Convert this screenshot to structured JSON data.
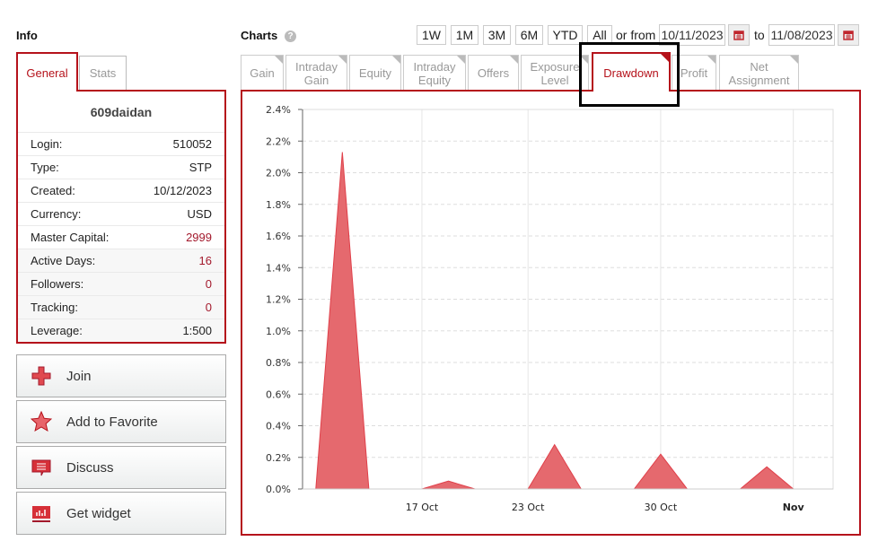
{
  "info": {
    "title": "Info",
    "tabs": [
      {
        "label": "General",
        "active": true
      },
      {
        "label": "Stats",
        "active": false
      }
    ],
    "account_name": "609daidan",
    "rows": [
      {
        "label": "Login:",
        "value": "510052"
      },
      {
        "label": "Type:",
        "value": "STP"
      },
      {
        "label": "Created:",
        "value": "10/12/2023"
      },
      {
        "label": "Currency:",
        "value": "USD"
      },
      {
        "label": "Master Capital:",
        "value": "2999"
      },
      {
        "label": "Active Days:",
        "value": "16"
      },
      {
        "label": "Followers:",
        "value": "0"
      },
      {
        "label": "Tracking:",
        "value": "0"
      },
      {
        "label": "Leverage:",
        "value": "1:500"
      }
    ],
    "actions": [
      {
        "label": "Join",
        "icon": "plus-icon"
      },
      {
        "label": "Add to Favorite",
        "icon": "star-icon"
      },
      {
        "label": "Discuss",
        "icon": "comment-icon"
      },
      {
        "label": "Get widget",
        "icon": "widget-chart-icon"
      }
    ]
  },
  "charts": {
    "title": "Charts",
    "help_icon": "question-icon",
    "ranges": [
      "1W",
      "1M",
      "3M",
      "6M",
      "YTD",
      "All"
    ],
    "or_from": "or from",
    "from_date": "10/11/2023",
    "to": "to",
    "to_date": "11/08/2023",
    "tabs": [
      {
        "label": "Gain"
      },
      {
        "label": "Intraday Gain"
      },
      {
        "label": "Equity"
      },
      {
        "label": "Intraday Equity"
      },
      {
        "label": "Offers"
      },
      {
        "label": "Exposure Level"
      },
      {
        "label": "Drawdown",
        "active": true
      },
      {
        "label": "Profit"
      },
      {
        "label": "Net Assignment"
      }
    ]
  },
  "colors": {
    "accent": "#b5121b",
    "area_fill": "#e5696e",
    "area_line": "#e0404a"
  },
  "chart_data": {
    "type": "area",
    "x": [
      "10/11/2023",
      "10/12/2023",
      "10/13/2023",
      "10/16/2023",
      "10/17/2023",
      "10/18/2023",
      "10/19/2023",
      "10/20/2023",
      "10/23/2023",
      "10/24/2023",
      "10/25/2023",
      "10/26/2023",
      "10/27/2023",
      "10/30/2023",
      "10/31/2023",
      "11/01/2023",
      "11/02/2023",
      "11/03/2023",
      "11/06/2023",
      "11/07/2023"
    ],
    "series": [
      {
        "values": [
          0,
          2.13,
          0,
          0,
          0,
          0.05,
          0,
          0,
          0,
          0.28,
          0,
          0,
          0,
          0.22,
          0,
          0,
          0,
          0.14,
          0,
          0
        ]
      }
    ],
    "ylim": [
      0,
      2.4
    ],
    "yticks": [
      "0.0%",
      "0.2%",
      "0.4%",
      "0.6%",
      "0.8%",
      "1.0%",
      "1.2%",
      "1.4%",
      "1.6%",
      "1.8%",
      "2.0%",
      "2.2%",
      "2.4%"
    ],
    "xticks": [
      {
        "label": "17 Oct",
        "date": "10/17/2023"
      },
      {
        "label": "23 Oct",
        "date": "10/23/2023"
      },
      {
        "label": "30 Oct",
        "date": "10/30/2023"
      },
      {
        "label": "Nov",
        "date": "11/06/2023",
        "bold": true
      }
    ],
    "grid": true,
    "x_spacing": "trading days"
  }
}
